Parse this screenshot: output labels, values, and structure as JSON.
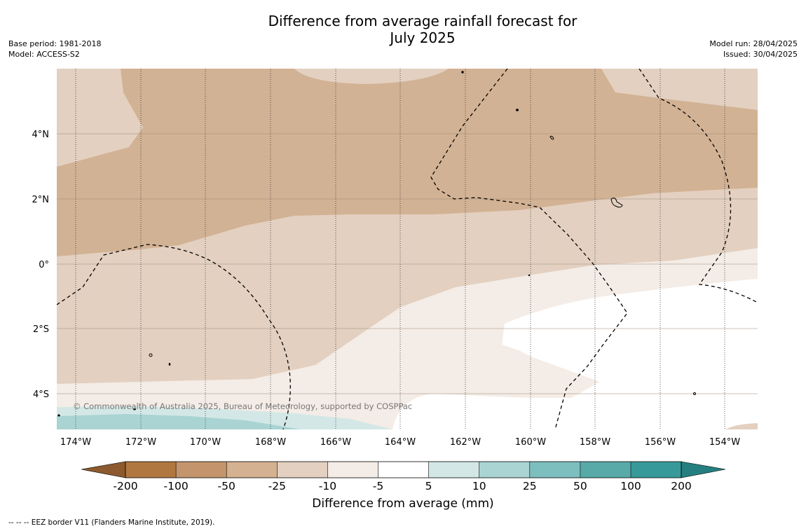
{
  "header": {
    "title_line1": "Difference from average rainfall forecast for",
    "title_line2": "July 2025",
    "base_period": "Base period: 1981-2018",
    "model": "Model: ACCESS-S2",
    "model_run": "Model run: 28/04/2025",
    "issued": "Issued: 30/04/2025"
  },
  "map": {
    "lon_labels": [
      "174°W",
      "172°W",
      "170°W",
      "168°W",
      "166°W",
      "164°W",
      "162°W",
      "160°W",
      "158°W",
      "156°W",
      "154°W"
    ],
    "lat_labels": [
      "4°N",
      "2°N",
      "0°",
      "2°S",
      "4°S"
    ],
    "copyright": "© Commonwealth of Australia 2025, Bureau of Meteorology, supported by COSPPac"
  },
  "colorbar": {
    "ticks": [
      "-200",
      "-100",
      "-50",
      "-25",
      "-10",
      "-5",
      "5",
      "10",
      "25",
      "50",
      "100",
      "200"
    ],
    "colors": [
      "#8c5a2e",
      "#b07840",
      "#c4956c",
      "#d4b190",
      "#e3d0c0",
      "#f4ece6",
      "#ffffff",
      "#d3e8e6",
      "#a9d4d3",
      "#7dbfbe",
      "#58aaa9",
      "#37999a",
      "#257f80"
    ],
    "label": "Difference from average (mm)"
  },
  "legend_note": "--  --  -- EEZ border V11 (Flanders Marine Institute, 2019)."
}
